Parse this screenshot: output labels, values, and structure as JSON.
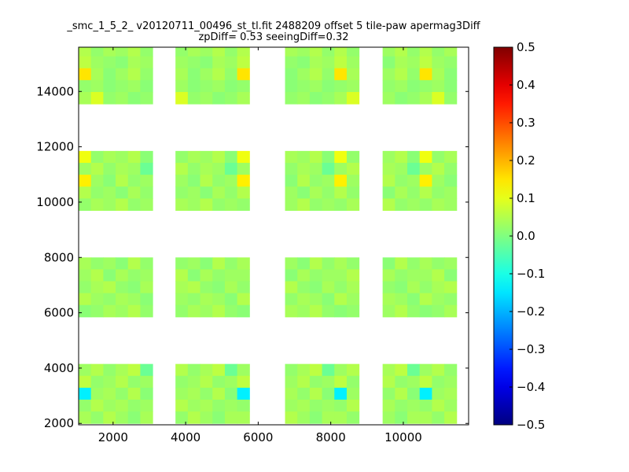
{
  "chart_data": {
    "type": "heatmap",
    "title_line1": "_smc_1_5_2_ v20120711_00496_st_tl.fit 2488209 offset 5 tile-paw apermag3Diff",
    "title_line2": "zpDiff= 0.53 seeingDiff=0.32",
    "xlabel": "",
    "ylabel": "",
    "xlim": [
      1050,
      11800
    ],
    "ylim": [
      1950,
      15600
    ],
    "xticks": [
      2000,
      4000,
      6000,
      8000,
      10000
    ],
    "xtick_labels": [
      "2000",
      "4000",
      "6000",
      "8000",
      "10000"
    ],
    "yticks": [
      2000,
      4000,
      6000,
      8000,
      10000,
      12000,
      14000
    ],
    "ytick_labels": [
      "2000",
      "4000",
      "6000",
      "8000",
      "10000",
      "12000",
      "14000"
    ],
    "colorbar": {
      "colormap": "jet",
      "range": [
        -0.5,
        0.5
      ],
      "ticks": [
        0.5,
        0.4,
        0.3,
        0.2,
        0.1,
        0.0,
        -0.1,
        -0.2,
        -0.3,
        -0.4,
        -0.5
      ],
      "tick_labels": [
        "0.5",
        "0.4",
        "0.3",
        "0.2",
        "0.1",
        "0.0",
        "−0.1",
        "−0.2",
        "−0.3",
        "−0.4",
        "−0.5"
      ]
    },
    "cell_size": {
      "x": 340,
      "y": 430
    },
    "x_bins": [
      1050,
      1390,
      1730,
      2070,
      2410,
      2750,
      3090,
      3430,
      3770,
      4110,
      4450,
      4790,
      5130,
      5470,
      5810,
      6150,
      6490,
      6830,
      7170,
      7510,
      7850,
      8190,
      8530,
      8870,
      9210,
      9550,
      9890,
      10230,
      10570,
      10910,
      11250,
      11590
    ],
    "row_groups_y": [
      {
        "y_start": 13550,
        "rows": 5
      },
      {
        "y_start": 9700,
        "rows": 5
      },
      {
        "y_start": 5850,
        "rows": 5
      },
      {
        "y_start": 2000,
        "rows": 5
      }
    ],
    "detector_columns_x": [
      {
        "x_start": 1050,
        "cols": 6
      },
      {
        "x_start": 3720,
        "cols": 6
      },
      {
        "x_start": 6740,
        "cols": 6
      },
      {
        "x_start": 9430,
        "cols": 6
      }
    ],
    "values_by_group_note": "row-major, top row first; null = no data (blank)",
    "groups": [
      [
        [
          0.05,
          0.02,
          0.04,
          0.03,
          0.05,
          0.02
        ],
        [
          0.06,
          0.03,
          0.02,
          0.01,
          0.04,
          0.03
        ],
        [
          0.15,
          0.04,
          0.01,
          0.03,
          0.05,
          0.02
        ],
        [
          0.02,
          0.03,
          0.01,
          0.02,
          0.03,
          0.01
        ],
        [
          0.04,
          0.09,
          0.02,
          0.03,
          0.01,
          0.02
        ]
      ],
      [
        [
          0.11,
          0.02,
          0.04,
          0.03,
          0.05,
          0.01
        ],
        [
          0.03,
          0.05,
          0.02,
          0.04,
          0.03,
          -0.02
        ],
        [
          0.14,
          0.03,
          0.01,
          0.05,
          0.02,
          0.03
        ],
        [
          0.05,
          0.02,
          0.03,
          0.01,
          0.04,
          0.02
        ],
        [
          0.02,
          0.04,
          0.03,
          0.05,
          0.02,
          0.03
        ]
      ],
      [
        [
          0.04,
          0.02,
          0.03,
          0.01,
          0.05,
          0.02
        ],
        [
          0.03,
          0.05,
          0.01,
          0.04,
          0.02,
          0.03
        ],
        [
          0.02,
          0.04,
          0.05,
          0.02,
          0.01,
          0.04
        ],
        [
          0.05,
          0.03,
          0.02,
          0.04,
          0.03,
          0.01
        ],
        [
          0.01,
          0.02,
          0.04,
          0.03,
          0.05,
          0.02
        ]
      ],
      [
        [
          0.03,
          0.05,
          0.02,
          0.04,
          0.06,
          -0.02
        ],
        [
          0.06,
          0.02,
          0.03,
          0.05,
          0.02,
          0.03
        ],
        [
          -0.14,
          0.03,
          0.04,
          0.02,
          0.05,
          0.01
        ],
        [
          0.02,
          0.05,
          0.03,
          0.04,
          0.02,
          0.03
        ],
        [
          0.04,
          0.02,
          0.05,
          0.03,
          0.01,
          0.04
        ]
      ]
    ]
  }
}
